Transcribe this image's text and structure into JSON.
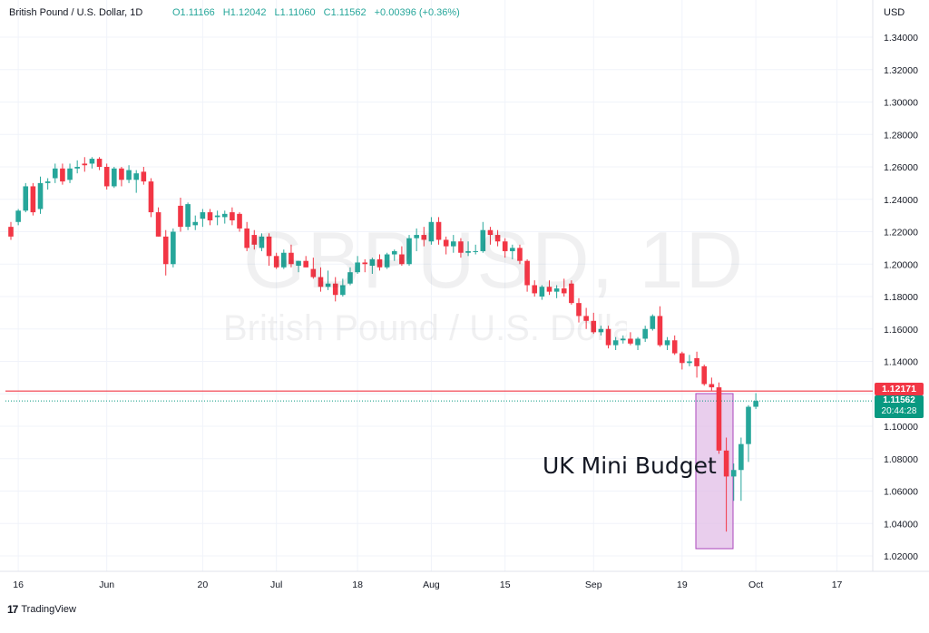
{
  "legend": {
    "symbol": "British Pound / U.S. Dollar, 1D",
    "open": "O1.11166",
    "high": "H1.12042",
    "low": "L1.11060",
    "close": "C1.11562",
    "change": "+0.00396 (+0.36%)",
    "currency": "USD"
  },
  "watermark": {
    "ticker": "GBPUSD, 1D",
    "name": "British Pound / U.S. Dollar"
  },
  "annotation": {
    "text": "UK Mini Budget",
    "box_fill": "#e1bee7",
    "box_stroke": "#ab47bc"
  },
  "price_tags": {
    "horizontal_line": "1.12171",
    "last_price": "1.11562",
    "countdown": "20:44:28"
  },
  "branding": {
    "logo_text": "TradingView"
  },
  "colors": {
    "up": "#26a69a",
    "down": "#f23645",
    "hline": "#f23645",
    "lastline": "#089981",
    "grid": "#f0f3fa"
  },
  "chart_data": {
    "type": "candlestick",
    "title": "British Pound / U.S. Dollar, 1D",
    "ylabel": "USD",
    "ylim": [
      1.01,
      1.35
    ],
    "y_ticks": [
      1.02,
      1.04,
      1.06,
      1.08,
      1.1,
      1.12,
      1.14,
      1.16,
      1.18,
      1.2,
      1.22,
      1.24,
      1.26,
      1.28,
      1.3,
      1.32,
      1.34
    ],
    "y_tick_labels": [
      "1.02000",
      "1.04000",
      "1.06000",
      "1.08000",
      "1.10000",
      "1.12000",
      "1.14000",
      "1.16000",
      "1.18000",
      "1.20000",
      "1.22000",
      "1.24000",
      "1.26000",
      "1.28000",
      "1.30000",
      "1.32000",
      "1.34000"
    ],
    "x_tick_labels": [
      {
        "label": "16",
        "index": 1
      },
      {
        "label": "Jun",
        "index": 13
      },
      {
        "label": "20",
        "index": 26
      },
      {
        "label": "Jul",
        "index": 36
      },
      {
        "label": "18",
        "index": 47
      },
      {
        "label": "Aug",
        "index": 57
      },
      {
        "label": "15",
        "index": 67
      },
      {
        "label": "Sep",
        "index": 79
      },
      {
        "label": "19",
        "index": 91
      },
      {
        "label": "Oct",
        "index": 101
      },
      {
        "label": "17",
        "index": 112
      }
    ],
    "horizontal_line": 1.12171,
    "last_price": 1.11562,
    "candles": [
      [
        1.223,
        1.226,
        1.215,
        1.217
      ],
      [
        1.226,
        1.234,
        1.224,
        1.233
      ],
      [
        1.233,
        1.25,
        1.232,
        1.248
      ],
      [
        1.248,
        1.25,
        1.23,
        1.232
      ],
      [
        1.234,
        1.254,
        1.231,
        1.25
      ],
      [
        1.25,
        1.253,
        1.246,
        1.251
      ],
      [
        1.253,
        1.262,
        1.25,
        1.259
      ],
      [
        1.259,
        1.262,
        1.249,
        1.251
      ],
      [
        1.252,
        1.262,
        1.25,
        1.259
      ],
      [
        1.259,
        1.264,
        1.256,
        1.26
      ],
      [
        1.262,
        1.266,
        1.257,
        1.261
      ],
      [
        1.262,
        1.266,
        1.259,
        1.265
      ],
      [
        1.265,
        1.266,
        1.258,
        1.26
      ],
      [
        1.26,
        1.262,
        1.246,
        1.248
      ],
      [
        1.248,
        1.26,
        1.247,
        1.259
      ],
      [
        1.259,
        1.26,
        1.248,
        1.252
      ],
      [
        1.252,
        1.261,
        1.25,
        1.258
      ],
      [
        1.252,
        1.258,
        1.244,
        1.256
      ],
      [
        1.257,
        1.26,
        1.249,
        1.251
      ],
      [
        1.251,
        1.253,
        1.229,
        1.232
      ],
      [
        1.232,
        1.235,
        1.217,
        1.217
      ],
      [
        1.217,
        1.221,
        1.193,
        1.2
      ],
      [
        1.2,
        1.222,
        1.198,
        1.22
      ],
      [
        1.236,
        1.241,
        1.22,
        1.223
      ],
      [
        1.223,
        1.238,
        1.221,
        1.237
      ],
      [
        1.224,
        1.23,
        1.221,
        1.226
      ],
      [
        1.228,
        1.234,
        1.223,
        1.232
      ],
      [
        1.232,
        1.234,
        1.224,
        1.227
      ],
      [
        1.229,
        1.233,
        1.224,
        1.23
      ],
      [
        1.229,
        1.233,
        1.225,
        1.231
      ],
      [
        1.232,
        1.235,
        1.224,
        1.227
      ],
      [
        1.231,
        1.232,
        1.22,
        1.222
      ],
      [
        1.222,
        1.226,
        1.208,
        1.21
      ],
      [
        1.218,
        1.221,
        1.209,
        1.212
      ],
      [
        1.21,
        1.219,
        1.208,
        1.217
      ],
      [
        1.217,
        1.219,
        1.199,
        1.205
      ],
      [
        1.205,
        1.207,
        1.197,
        1.198
      ],
      [
        1.198,
        1.209,
        1.197,
        1.207
      ],
      [
        1.207,
        1.212,
        1.198,
        1.2
      ],
      [
        1.199,
        1.202,
        1.195,
        1.202
      ],
      [
        1.202,
        1.205,
        1.198,
        1.198
      ],
      [
        1.197,
        1.204,
        1.191,
        1.192
      ],
      [
        1.192,
        1.198,
        1.183,
        1.186
      ],
      [
        1.186,
        1.196,
        1.184,
        1.188
      ],
      [
        1.188,
        1.192,
        1.177,
        1.181
      ],
      [
        1.181,
        1.191,
        1.18,
        1.187
      ],
      [
        1.188,
        1.198,
        1.187,
        1.195
      ],
      [
        1.195,
        1.205,
        1.194,
        1.201
      ],
      [
        1.201,
        1.203,
        1.195,
        1.2
      ],
      [
        1.199,
        1.204,
        1.194,
        1.203
      ],
      [
        1.203,
        1.206,
        1.196,
        1.198
      ],
      [
        1.198,
        1.207,
        1.197,
        1.206
      ],
      [
        1.206,
        1.209,
        1.202,
        1.208
      ],
      [
        1.206,
        1.211,
        1.199,
        1.2
      ],
      [
        1.2,
        1.218,
        1.199,
        1.216
      ],
      [
        1.216,
        1.222,
        1.208,
        1.218
      ],
      [
        1.218,
        1.223,
        1.211,
        1.215
      ],
      [
        1.214,
        1.229,
        1.212,
        1.226
      ],
      [
        1.226,
        1.229,
        1.212,
        1.215
      ],
      [
        1.215,
        1.217,
        1.206,
        1.211
      ],
      [
        1.211,
        1.218,
        1.207,
        1.214
      ],
      [
        1.214,
        1.216,
        1.204,
        1.207
      ],
      [
        1.207,
        1.214,
        1.205,
        1.208
      ],
      [
        1.208,
        1.212,
        1.206,
        1.208
      ],
      [
        1.208,
        1.226,
        1.207,
        1.221
      ],
      [
        1.221,
        1.223,
        1.212,
        1.218
      ],
      [
        1.218,
        1.221,
        1.211,
        1.214
      ],
      [
        1.214,
        1.216,
        1.204,
        1.208
      ],
      [
        1.208,
        1.212,
        1.203,
        1.21
      ],
      [
        1.21,
        1.212,
        1.2,
        1.202
      ],
      [
        1.202,
        1.203,
        1.183,
        1.187
      ],
      [
        1.187,
        1.19,
        1.18,
        1.182
      ],
      [
        1.18,
        1.187,
        1.178,
        1.186
      ],
      [
        1.186,
        1.19,
        1.181,
        1.183
      ],
      [
        1.183,
        1.187,
        1.179,
        1.185
      ],
      [
        1.185,
        1.191,
        1.18,
        1.182
      ],
      [
        1.188,
        1.19,
        1.175,
        1.176
      ],
      [
        1.176,
        1.179,
        1.164,
        1.168
      ],
      [
        1.168,
        1.173,
        1.16,
        1.165
      ],
      [
        1.165,
        1.17,
        1.157,
        1.158
      ],
      [
        1.158,
        1.162,
        1.156,
        1.16
      ],
      [
        1.16,
        1.162,
        1.148,
        1.15
      ],
      [
        1.15,
        1.155,
        1.147,
        1.153
      ],
      [
        1.153,
        1.156,
        1.151,
        1.154
      ],
      [
        1.154,
        1.158,
        1.15,
        1.151
      ],
      [
        1.15,
        1.155,
        1.147,
        1.154
      ],
      [
        1.154,
        1.162,
        1.152,
        1.16
      ],
      [
        1.16,
        1.169,
        1.159,
        1.168
      ],
      [
        1.168,
        1.174,
        1.149,
        1.15
      ],
      [
        1.15,
        1.155,
        1.147,
        1.153
      ],
      [
        1.153,
        1.156,
        1.144,
        1.145
      ],
      [
        1.145,
        1.146,
        1.135,
        1.139
      ],
      [
        1.139,
        1.144,
        1.137,
        1.14
      ],
      [
        1.142,
        1.146,
        1.13,
        1.137
      ],
      [
        1.137,
        1.138,
        1.125,
        1.126
      ],
      [
        1.126,
        1.13,
        1.122,
        1.124
      ],
      [
        1.124,
        1.127,
        1.083,
        1.085
      ],
      [
        1.085,
        1.093,
        1.035,
        1.069
      ],
      [
        1.069,
        1.077,
        1.054,
        1.073
      ],
      [
        1.073,
        1.093,
        1.054,
        1.089
      ],
      [
        1.089,
        1.113,
        1.078,
        1.112
      ],
      [
        1.112,
        1.1204,
        1.1106,
        1.1156
      ]
    ]
  }
}
